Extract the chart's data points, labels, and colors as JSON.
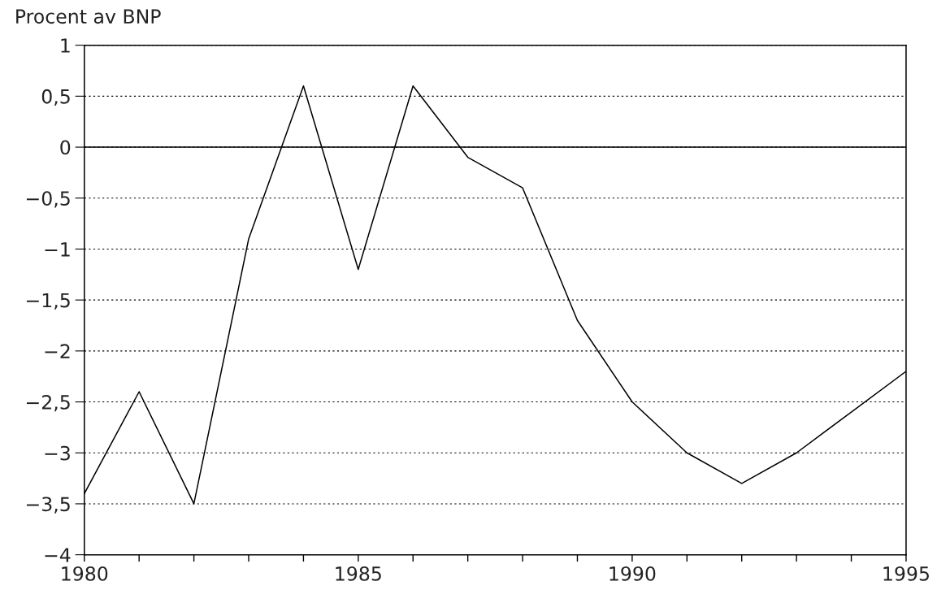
{
  "chart_data": {
    "type": "line",
    "ylabel": "Procent av BNP",
    "x": [
      1980,
      1981,
      1982,
      1983,
      1984,
      1985,
      1986,
      1987,
      1988,
      1989,
      1990,
      1991,
      1992,
      1993,
      1994,
      1995
    ],
    "series": [
      {
        "color": "#000000",
        "values": [
          -3.4,
          -2.4,
          -3.5,
          -0.9,
          0.6,
          -1.2,
          0.6,
          -0.1,
          -0.4,
          -1.7,
          -2.5,
          -3.0,
          -3.3,
          -3.0,
          -2.6,
          -2.2
        ]
      }
    ],
    "xlim": [
      1980,
      1995
    ],
    "xticks": [
      1980,
      {
        "value": 1981,
        "label": null
      },
      {
        "value": 1982,
        "label": null
      },
      {
        "value": 1983,
        "label": null
      },
      {
        "value": 1984,
        "label": null
      },
      1985,
      {
        "value": 1986,
        "label": null
      },
      {
        "value": 1987,
        "label": null
      },
      {
        "value": 1988,
        "label": null
      },
      {
        "value": 1989,
        "label": null
      },
      1990,
      {
        "value": 1991,
        "label": null
      },
      {
        "value": 1992,
        "label": null
      },
      {
        "value": 1993,
        "label": null
      },
      {
        "value": 1994,
        "label": null
      },
      1995
    ],
    "ylim": [
      -4,
      1
    ],
    "yticks": [
      {
        "value": -4,
        "label": "−4"
      },
      {
        "value": -3.5,
        "label": "−3,5"
      },
      {
        "value": -3,
        "label": "−3"
      },
      {
        "value": -2.5,
        "label": "−2,5"
      },
      {
        "value": -2,
        "label": "−2"
      },
      {
        "value": -1.5,
        "label": "−1,5"
      },
      {
        "value": -1,
        "label": "−1"
      },
      {
        "value": -0.5,
        "label": "−0,5"
      },
      {
        "value": 0,
        "label": "0"
      },
      {
        "value": 0.5,
        "label": "0,5"
      },
      1
    ],
    "ref_lines": [
      {
        "axis": "y",
        "value": 0,
        "color": "#000000",
        "line_style": "solid"
      }
    ],
    "grid": "y",
    "marker": "none",
    "line_style": "solid",
    "legend": false
  }
}
